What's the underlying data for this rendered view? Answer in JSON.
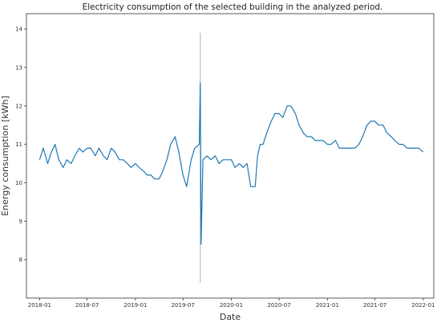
{
  "chart_data": {
    "type": "line",
    "title": "Electricity consumption of the selected building in the analyzed period.",
    "xlabel": "Date",
    "ylabel": "Energy consumption [kWh]",
    "x_range": [
      "2017-11-12",
      "2022-02-10"
    ],
    "ylim": [
      7.0,
      14.4
    ],
    "x_ticks": [
      "2018-01",
      "2018-07",
      "2019-01",
      "2019-07",
      "2020-01",
      "2020-07",
      "2021-01",
      "2021-07",
      "2022-01"
    ],
    "y_ticks": [
      "8",
      "9",
      "10",
      "11",
      "12",
      "13",
      "14"
    ],
    "grid": false,
    "series": [
      {
        "color": "#1f77b4",
        "points": [
          [
            "2018-01-01",
            10.6
          ],
          [
            "2018-01-15",
            10.9
          ],
          [
            "2018-02-01",
            10.5
          ],
          [
            "2018-02-15",
            10.8
          ],
          [
            "2018-03-01",
            11.0
          ],
          [
            "2018-03-15",
            10.6
          ],
          [
            "2018-04-01",
            10.4
          ],
          [
            "2018-04-15",
            10.6
          ],
          [
            "2018-05-01",
            10.5
          ],
          [
            "2018-05-15",
            10.7
          ],
          [
            "2018-06-01",
            10.9
          ],
          [
            "2018-06-15",
            10.8
          ],
          [
            "2018-07-01",
            10.9
          ],
          [
            "2018-07-15",
            10.9
          ],
          [
            "2018-08-01",
            10.7
          ],
          [
            "2018-08-15",
            10.9
          ],
          [
            "2018-09-01",
            10.7
          ],
          [
            "2018-09-15",
            10.6
          ],
          [
            "2018-10-01",
            10.9
          ],
          [
            "2018-10-15",
            10.8
          ],
          [
            "2018-11-01",
            10.6
          ],
          [
            "2018-11-15",
            10.6
          ],
          [
            "2018-12-01",
            10.5
          ],
          [
            "2018-12-15",
            10.4
          ],
          [
            "2019-01-01",
            10.5
          ],
          [
            "2019-01-15",
            10.4
          ],
          [
            "2019-02-01",
            10.3
          ],
          [
            "2019-02-15",
            10.2
          ],
          [
            "2019-03-01",
            10.2
          ],
          [
            "2019-03-15",
            10.1
          ],
          [
            "2019-04-01",
            10.1
          ],
          [
            "2019-04-15",
            10.3
          ],
          [
            "2019-05-01",
            10.6
          ],
          [
            "2019-05-15",
            11.0
          ],
          [
            "2019-06-01",
            11.2
          ],
          [
            "2019-06-15",
            10.8
          ],
          [
            "2019-07-01",
            10.2
          ],
          [
            "2019-07-15",
            9.9
          ],
          [
            "2019-08-01",
            10.6
          ],
          [
            "2019-08-15",
            10.9
          ],
          [
            "2019-09-01",
            11.0
          ],
          [
            "2019-09-05",
            12.6
          ],
          [
            "2019-09-08",
            8.4
          ],
          [
            "2019-09-15",
            10.6
          ],
          [
            "2019-10-01",
            10.7
          ],
          [
            "2019-10-15",
            10.6
          ],
          [
            "2019-11-01",
            10.7
          ],
          [
            "2019-11-15",
            10.5
          ],
          [
            "2019-12-01",
            10.6
          ],
          [
            "2019-12-15",
            10.6
          ],
          [
            "2020-01-01",
            10.6
          ],
          [
            "2020-01-15",
            10.4
          ],
          [
            "2020-02-01",
            10.5
          ],
          [
            "2020-02-15",
            10.4
          ],
          [
            "2020-03-01",
            10.5
          ],
          [
            "2020-03-15",
            9.9
          ],
          [
            "2020-04-01",
            9.9
          ],
          [
            "2020-04-10",
            10.7
          ],
          [
            "2020-04-20",
            11.0
          ],
          [
            "2020-05-01",
            11.0
          ],
          [
            "2020-05-15",
            11.3
          ],
          [
            "2020-06-01",
            11.6
          ],
          [
            "2020-06-15",
            11.8
          ],
          [
            "2020-07-01",
            11.8
          ],
          [
            "2020-07-15",
            11.7
          ],
          [
            "2020-08-01",
            12.0
          ],
          [
            "2020-08-15",
            12.0
          ],
          [
            "2020-09-01",
            11.8
          ],
          [
            "2020-09-15",
            11.5
          ],
          [
            "2020-10-01",
            11.3
          ],
          [
            "2020-10-15",
            11.2
          ],
          [
            "2020-11-01",
            11.2
          ],
          [
            "2020-11-15",
            11.1
          ],
          [
            "2020-12-01",
            11.1
          ],
          [
            "2020-12-15",
            11.1
          ],
          [
            "2021-01-01",
            11.0
          ],
          [
            "2021-01-15",
            11.0
          ],
          [
            "2021-02-01",
            11.1
          ],
          [
            "2021-02-15",
            10.9
          ],
          [
            "2021-03-01",
            10.9
          ],
          [
            "2021-03-15",
            10.9
          ],
          [
            "2021-04-01",
            10.9
          ],
          [
            "2021-04-15",
            10.9
          ],
          [
            "2021-05-01",
            11.0
          ],
          [
            "2021-05-15",
            11.2
          ],
          [
            "2021-06-01",
            11.5
          ],
          [
            "2021-06-15",
            11.6
          ],
          [
            "2021-07-01",
            11.6
          ],
          [
            "2021-07-15",
            11.5
          ],
          [
            "2021-08-01",
            11.5
          ],
          [
            "2021-08-15",
            11.3
          ],
          [
            "2021-09-01",
            11.2
          ],
          [
            "2021-09-15",
            11.1
          ],
          [
            "2021-10-01",
            11.0
          ],
          [
            "2021-10-15",
            11.0
          ],
          [
            "2021-11-01",
            10.9
          ],
          [
            "2021-11-15",
            10.9
          ],
          [
            "2021-12-01",
            10.9
          ],
          [
            "2021-12-15",
            10.9
          ],
          [
            "2022-01-01",
            10.8
          ]
        ]
      }
    ],
    "annotations": [
      {
        "type": "vertical-range",
        "x": "2019-09-05",
        "y_range": [
          7.4,
          13.9
        ]
      }
    ]
  }
}
